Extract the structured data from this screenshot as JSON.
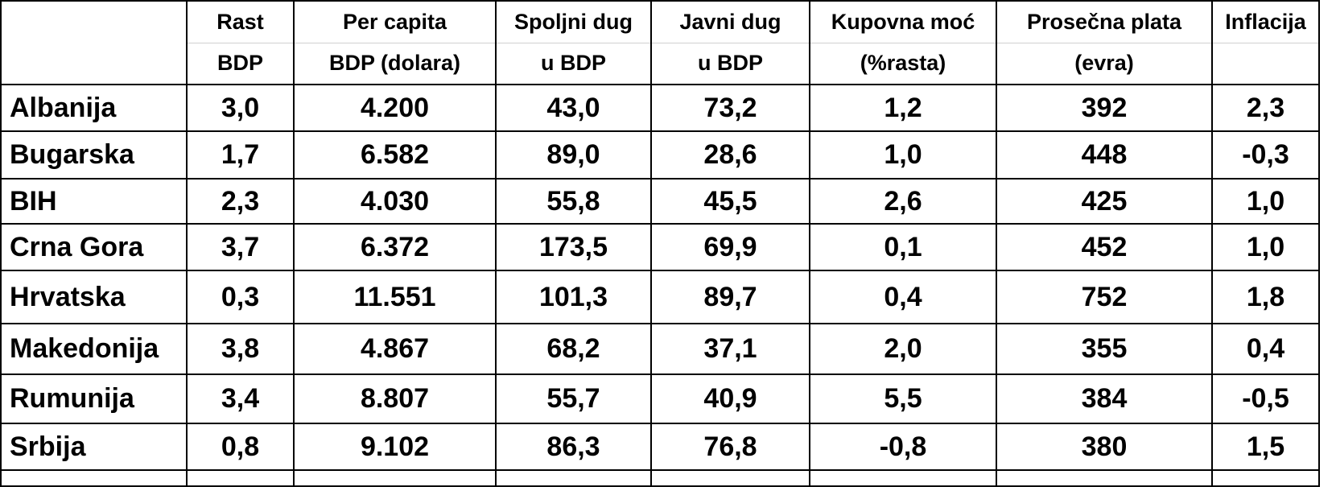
{
  "table": {
    "header": [
      [
        "Rast",
        "BDP"
      ],
      [
        "Per capita",
        "BDP (dolara)"
      ],
      [
        "Spoljni dug",
        "u BDP"
      ],
      [
        "Javni dug",
        "u BDP"
      ],
      [
        "Kupovna moć",
        "(%rasta)"
      ],
      [
        "Prosečna plata",
        "(evra)"
      ],
      [
        "Inflacija"
      ]
    ],
    "rows": [
      [
        "Albanija",
        "3,0",
        "4.200",
        "43,0",
        "73,2",
        "1,2",
        "392",
        "2,3"
      ],
      [
        "Bugarska",
        "1,7",
        "6.582",
        "89,0",
        "28,6",
        "1,0",
        "448",
        "-0,3"
      ],
      [
        "BIH",
        "2,3",
        "4.030",
        "55,8",
        "45,5",
        "2,6",
        "425",
        "1,0"
      ],
      [
        "Crna Gora",
        "3,7",
        "6.372",
        "173,5",
        "69,9",
        "0,1",
        "452",
        "1,0"
      ],
      [
        "Hrvatska",
        "0,3",
        "11.551",
        "101,3",
        "89,7",
        "0,4",
        "752",
        "1,8"
      ],
      [
        "Makedonija",
        "3,8",
        "4.867",
        "68,2",
        "37,1",
        "2,0",
        "355",
        "0,4"
      ],
      [
        "Rumunija",
        "3,4",
        "8.807",
        "55,7",
        "40,9",
        "5,5",
        "384",
        "-0,5"
      ],
      [
        "Srbija",
        "0,8",
        "9.102",
        "86,3",
        "76,8",
        "-0,8",
        "380",
        "1,5"
      ]
    ]
  }
}
